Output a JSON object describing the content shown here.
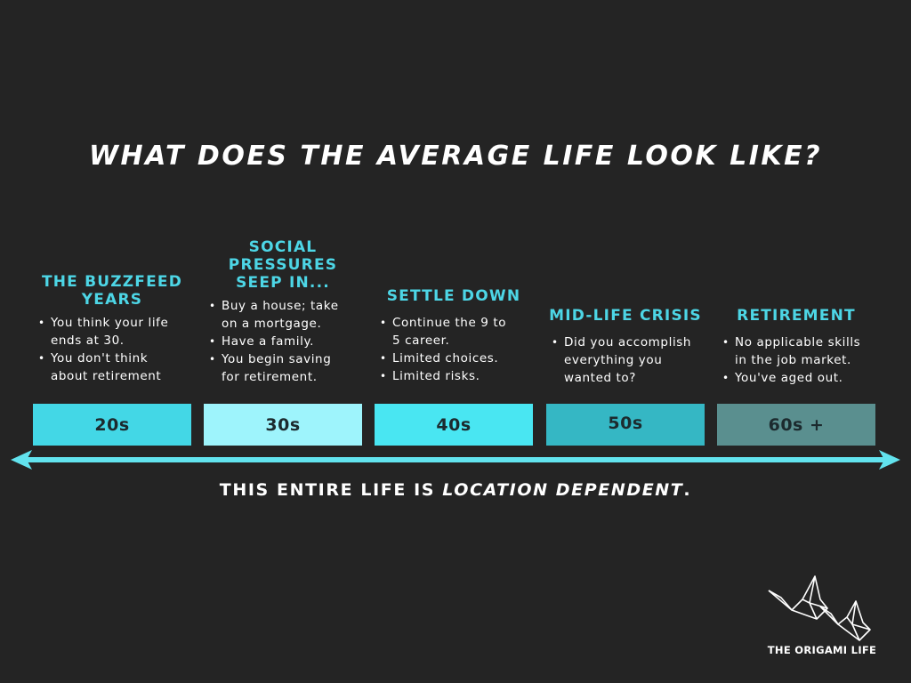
{
  "title": "WHAT DOES THE AVERAGE LIFE LOOK LIKE?",
  "stages": [
    {
      "heading": [
        "THE BUZZFEED",
        "YEARS"
      ],
      "bullets": [
        [
          "You think your life",
          "ends at 30."
        ],
        [
          "You don't think",
          "about retirement"
        ]
      ],
      "decade": "20s",
      "color": "#43d7e6"
    },
    {
      "heading": [
        "SOCIAL",
        "PRESSURES",
        "SEEP IN..."
      ],
      "bullets": [
        [
          "Buy a house; take",
          "on a mortgage."
        ],
        [
          "Have a family."
        ],
        [
          "You begin saving",
          "for retirement."
        ]
      ],
      "decade": "30s",
      "color": "#9ef4fc"
    },
    {
      "heading": [
        "SETTLE DOWN"
      ],
      "bullets": [
        [
          "Continue the 9 to",
          "5 career."
        ],
        [
          "Limited choices."
        ],
        [
          "Limited risks."
        ]
      ],
      "decade": "40s",
      "color": "#49e6f2"
    },
    {
      "heading": [
        "MID-LIFE CRISIS"
      ],
      "bullets": [
        [
          "Did you accomplish",
          "everything you",
          "wanted to?"
        ]
      ],
      "decade": "50s",
      "color": "#35b7c4"
    },
    {
      "heading": [
        "RETIREMENT"
      ],
      "bullets": [
        [
          "No applicable skills",
          "in the job market."
        ],
        [
          "You've aged out."
        ]
      ],
      "decade": "60s +",
      "color": "#5a8f8f"
    }
  ],
  "footer": {
    "prefix": "THIS ENTIRE LIFE IS ",
    "emphasis": "LOCATION DEPENDENT",
    "suffix": "."
  },
  "logo": {
    "icon": "origami-crane-icon",
    "text": "THE ORIGAMI LIFE"
  },
  "colors": {
    "background": "#242424",
    "accent": "#4dd6e6",
    "arrow": "#62e3ee"
  }
}
